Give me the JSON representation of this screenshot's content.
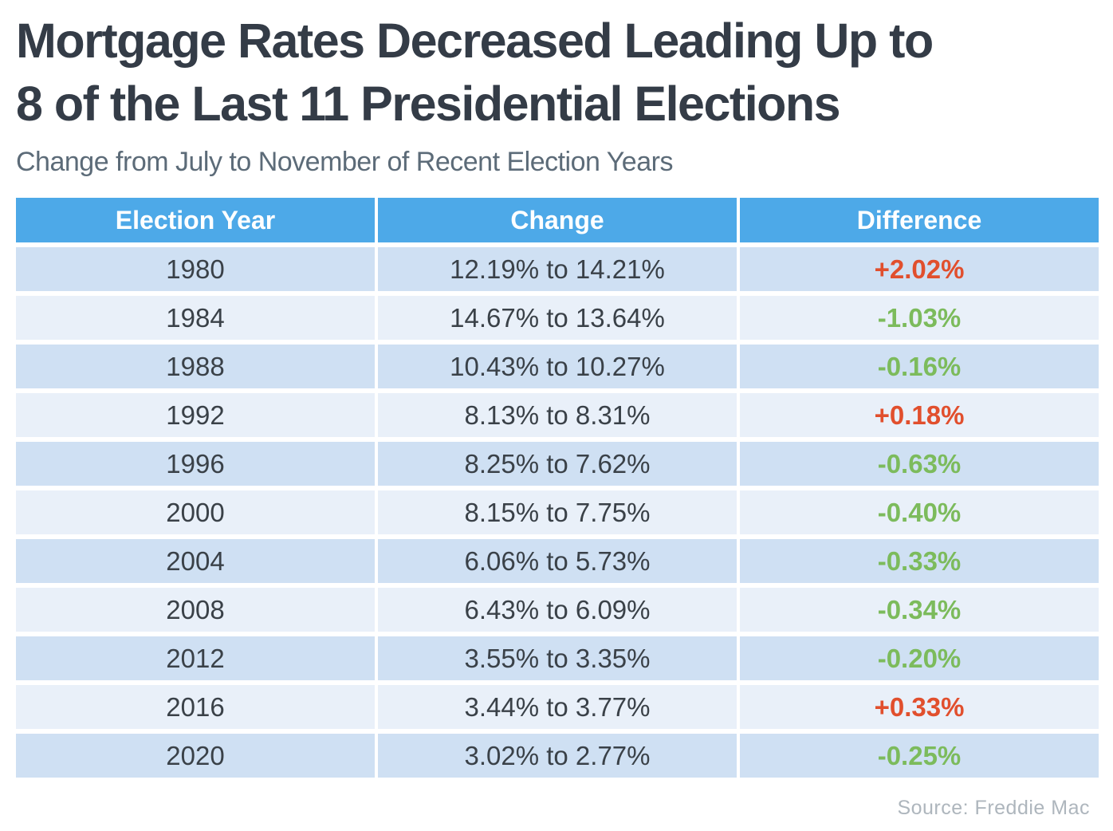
{
  "chart_data": {
    "type": "table",
    "title_lines": [
      "Mortgage Rates Decreased Leading Up to",
      "8 of the Last 11 Presidential Elections"
    ],
    "subtitle": "Change from July to November of Recent Election Years",
    "columns": [
      "Election Year",
      "Change",
      "Difference"
    ],
    "rows": [
      {
        "year": "1980",
        "change": "12.19% to 14.21%",
        "difference": "+2.02%",
        "direction": "up"
      },
      {
        "year": "1984",
        "change": "14.67% to 13.64%",
        "difference": "-1.03%",
        "direction": "down"
      },
      {
        "year": "1988",
        "change": "10.43% to 10.27%",
        "difference": "-0.16%",
        "direction": "down"
      },
      {
        "year": "1992",
        "change": "8.13% to 8.31%",
        "difference": "+0.18%",
        "direction": "up"
      },
      {
        "year": "1996",
        "change": "8.25% to 7.62%",
        "difference": "-0.63%",
        "direction": "down"
      },
      {
        "year": "2000",
        "change": "8.15% to 7.75%",
        "difference": "-0.40%",
        "direction": "down"
      },
      {
        "year": "2004",
        "change": "6.06% to 5.73%",
        "difference": "-0.33%",
        "direction": "down"
      },
      {
        "year": "2008",
        "change": "6.43% to 6.09%",
        "difference": "-0.34%",
        "direction": "down"
      },
      {
        "year": "2012",
        "change": "3.55% to 3.35%",
        "difference": "-0.20%",
        "direction": "down"
      },
      {
        "year": "2016",
        "change": "3.44% to 3.77%",
        "difference": "+0.33%",
        "direction": "up"
      },
      {
        "year": "2020",
        "change": "3.02% to 2.77%",
        "difference": "-0.25%",
        "direction": "down"
      }
    ],
    "source": "Source: Freddie Mac",
    "layout_hints": {
      "legend": "none",
      "grid": "off",
      "row_striping": "alternating"
    }
  },
  "colors": {
    "header_bg": "#4da9e8",
    "header_text": "#ffffff",
    "row_odd": "#cfe0f3",
    "row_even": "#e9f0f9",
    "increase": "#e14f2d",
    "decrease": "#7cbb5c",
    "title_color": "#343c47",
    "subtitle_color": "#5c6b78",
    "body_text": "#3a4148",
    "source_color": "#aeb6bd",
    "page_bg": "#ffffff"
  }
}
